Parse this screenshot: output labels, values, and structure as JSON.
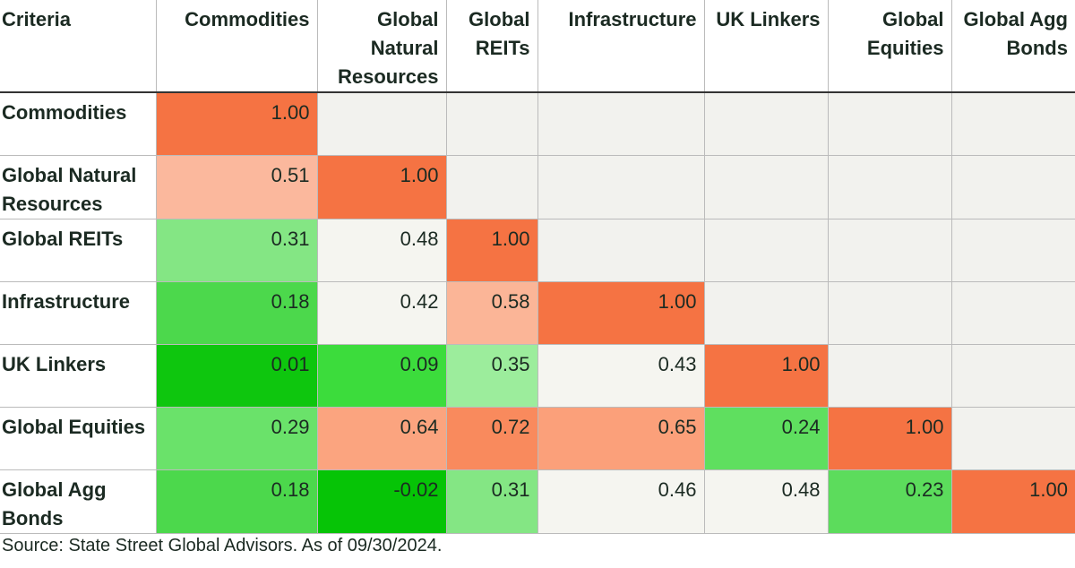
{
  "table": {
    "header": [
      "Criteria",
      "Commodities",
      "Global Natural Resources",
      "Global REITs",
      "Infrastructure",
      "UK Linkers",
      "Global Equities",
      "Global Agg Bonds"
    ],
    "rows": [
      {
        "label": "Commodities",
        "cells": [
          "1.00",
          null,
          null,
          null,
          null,
          null,
          null
        ],
        "colors": [
          "#f57343",
          "#f2f2ee",
          "#f2f2ee",
          "#f2f2ee",
          "#f2f2ee",
          "#f2f2ee",
          "#f2f2ee"
        ]
      },
      {
        "label": "Global Natural Resources",
        "cells": [
          "0.51",
          "1.00",
          null,
          null,
          null,
          null,
          null
        ],
        "colors": [
          "#fbb89d",
          "#f57343",
          "#f2f2ee",
          "#f2f2ee",
          "#f2f2ee",
          "#f2f2ee",
          "#f2f2ee"
        ]
      },
      {
        "label": "Global REITs",
        "cells": [
          "0.31",
          "0.48",
          "1.00",
          null,
          null,
          null,
          null
        ],
        "colors": [
          "#84e684",
          "#f5f5f0",
          "#f57343",
          "#f2f2ee",
          "#f2f2ee",
          "#f2f2ee",
          "#f2f2ee"
        ]
      },
      {
        "label": "Infrastructure",
        "cells": [
          "0.18",
          "0.42",
          "0.58",
          "1.00",
          null,
          null,
          null
        ],
        "colors": [
          "#4cd84c",
          "#f5f5f0",
          "#fbb597",
          "#f57343",
          "#f2f2ee",
          "#f2f2ee",
          "#f2f2ee"
        ]
      },
      {
        "label": "UK Linkers",
        "cells": [
          "0.01",
          "0.09",
          "0.35",
          "0.43",
          "1.00",
          null,
          null
        ],
        "colors": [
          "#0ec60e",
          "#3cdc3c",
          "#9ced9c",
          "#f5f5f0",
          "#f57343",
          "#f2f2ee",
          "#f2f2ee"
        ]
      },
      {
        "label": "Global Equities",
        "cells": [
          "0.29",
          "0.64",
          "0.72",
          "0.65",
          "0.24",
          "1.00",
          null
        ],
        "colors": [
          "#6ae26a",
          "#fba47f",
          "#f98a5d",
          "#fba07a",
          "#5fdf5f",
          "#f57343",
          "#f2f2ee"
        ]
      },
      {
        "label": "Global Agg Bonds",
        "cells": [
          "0.18",
          "-0.02",
          "0.31",
          "0.46",
          "0.48",
          "0.23",
          "1.00"
        ],
        "colors": [
          "#4cd84c",
          "#06c406",
          "#84e684",
          "#f5f5f0",
          "#f5f5f0",
          "#5cdc5c",
          "#f57343"
        ]
      }
    ]
  },
  "footer": "Source: State Street Global Advisors. As of 09/30/2024."
}
